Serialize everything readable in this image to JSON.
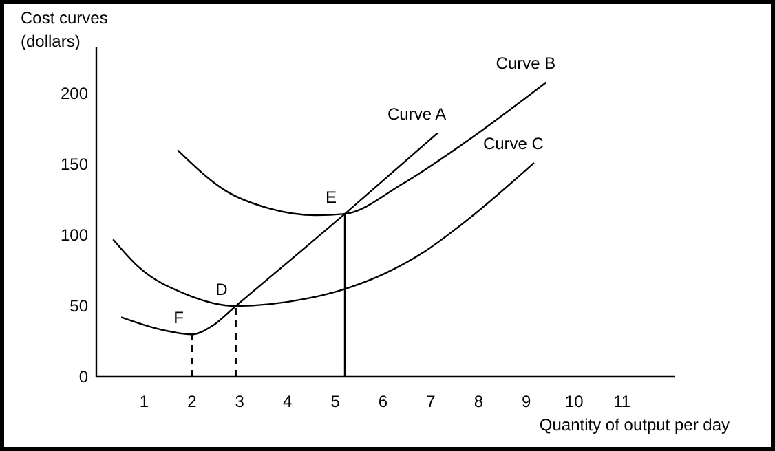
{
  "chart_data": {
    "type": "line",
    "ylabel": "Cost curves (dollars)",
    "xlabel": "Quantity of output per day",
    "xlim": [
      0,
      12.1
    ],
    "ylim": [
      0,
      233
    ],
    "xticks": [
      1,
      2,
      3,
      4,
      5,
      6,
      7,
      8,
      9,
      10,
      11
    ],
    "yticks": [
      0,
      50,
      100,
      150,
      200
    ],
    "grid": false,
    "marker": "none",
    "series": [
      {
        "name": "Curve A",
        "color": "#000000",
        "x": [
          0.52,
          1.39,
          2.0,
          2.43,
          2.92,
          5.2,
          7.14
        ],
        "values": [
          42,
          33,
          30,
          36,
          50,
          115,
          172
        ]
      },
      {
        "name": "Curve B",
        "color": "#000000",
        "x": [
          1.7,
          2.72,
          3.6,
          4.6,
          5.2,
          6.4,
          7.7,
          9.42
        ],
        "values": [
          160,
          131,
          119,
          114,
          115,
          136,
          165,
          208
        ]
      },
      {
        "name": "Curve C",
        "color": "#000000",
        "x": [
          0.35,
          0.87,
          1.9,
          2.92,
          4.37,
          5.2,
          6.04,
          6.85,
          7.7,
          9.16
        ],
        "values": [
          97,
          78,
          58,
          50,
          55,
          62,
          73,
          88,
          109,
          151
        ]
      },
      {
        "color": "#000000",
        "line_style": "dashed",
        "x": [
          2,
          2
        ],
        "values": [
          0,
          30
        ]
      },
      {
        "color": "#000000",
        "line_style": "dashed",
        "x": [
          2.92,
          2.92
        ],
        "values": [
          0,
          50
        ]
      },
      {
        "color": "#000000",
        "line_style": "solid",
        "x": [
          5.2,
          5.2
        ],
        "values": [
          0,
          115
        ]
      }
    ],
    "annotations": [
      {
        "text": "F",
        "x": 2.0,
        "y": 30
      },
      {
        "text": "D",
        "x": 2.92,
        "y": 50
      },
      {
        "text": "E",
        "x": 5.2,
        "y": 115
      }
    ]
  }
}
